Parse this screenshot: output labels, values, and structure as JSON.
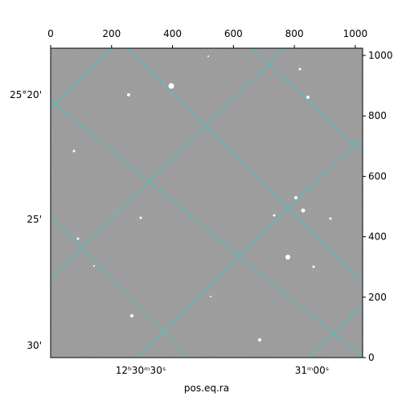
{
  "chart_data": {
    "type": "image",
    "xlabel": "pos.eq.ra",
    "xlim": [
      0,
      1024
    ],
    "ylim": [
      0,
      1024
    ],
    "xticks": [
      0,
      200,
      400,
      600,
      800,
      1000
    ],
    "yticks": [
      0,
      200,
      400,
      600,
      800,
      1000
    ],
    "ra_ticks": [
      "12ʰ30ᵐ30ˢ",
      "31ᵐ00ˢ"
    ],
    "dec_ticks": [
      "25°20'",
      "25'",
      "30'"
    ],
    "grid": true,
    "grid_color": "#00e5e5"
  }
}
